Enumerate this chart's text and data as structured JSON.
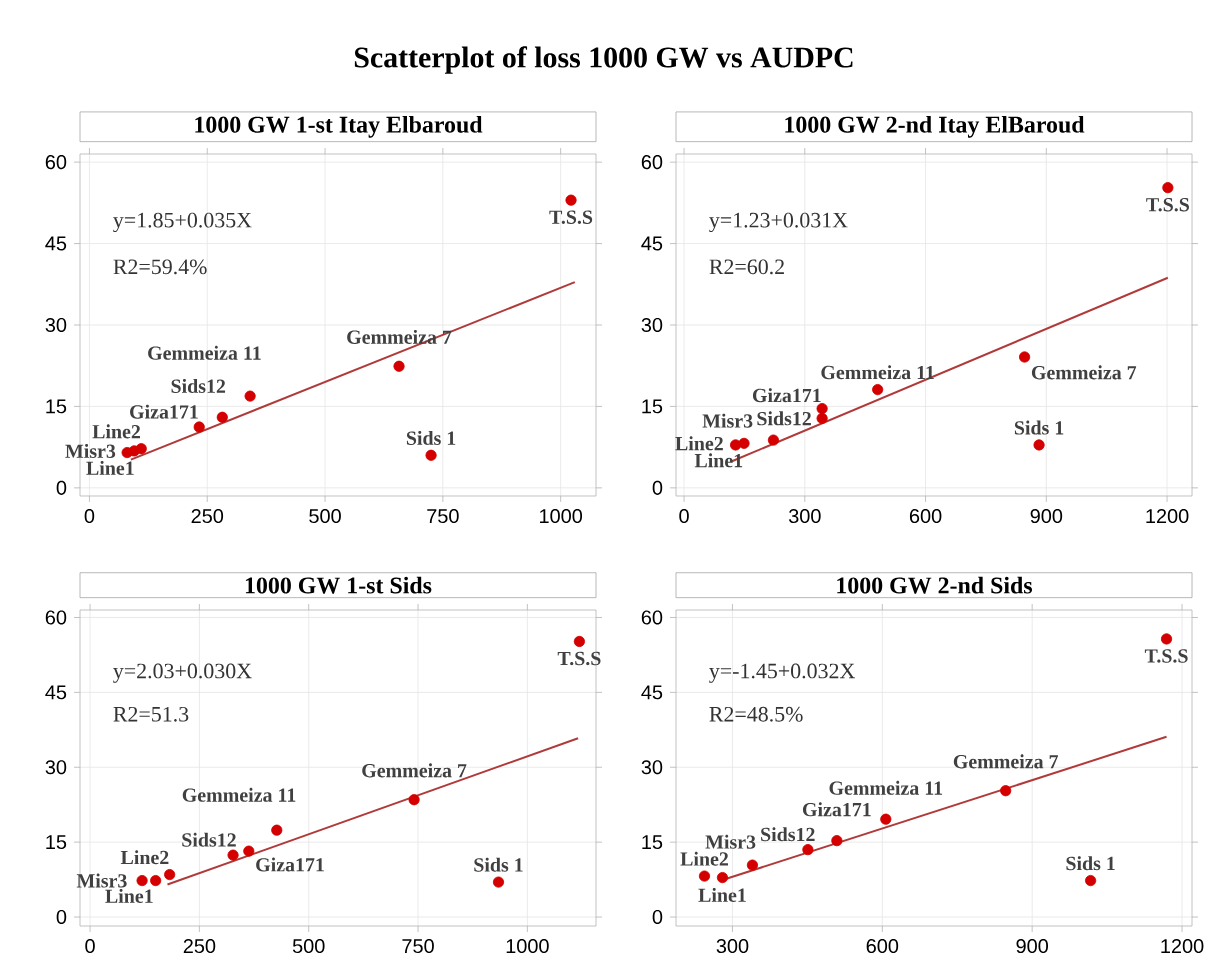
{
  "chart_data": [
    {
      "type": "scatter",
      "title": "1000 GW 1-st  Itay Elbaroud",
      "xlim": [
        -20,
        1075
      ],
      "ylim": [
        -1.5,
        61.5
      ],
      "xticks": [
        0,
        250,
        500,
        750,
        1000
      ],
      "yticks": [
        0,
        15,
        30,
        45,
        60
      ],
      "grid": true,
      "marker": "circle",
      "series": [
        {
          "color": "#d40000",
          "x": [
            80,
            110,
            95,
            233,
            282,
            341,
            657,
            725,
            1022
          ],
          "values": [
            6.5,
            7.2,
            6.8,
            11.2,
            13.0,
            16.9,
            22.4,
            6.0,
            53.0
          ]
        },
        {
          "type": "line",
          "marker": "none",
          "color": "#b03a3a",
          "x": [
            88,
            1030
          ],
          "values": [
            5.2,
            37.9
          ]
        }
      ],
      "annotations": [
        "Scatterplot of loss 1000 GW vs AUDPC",
        "y=1.85+0.035X",
        "R2=59.4%",
        {
          "text": "Line1",
          "x": 80,
          "y": 6.5
        },
        {
          "text": "Line2",
          "x": 110,
          "y": 7.2
        },
        {
          "text": "Misr3",
          "x": 95,
          "y": 6.8
        },
        {
          "text": "Giza171",
          "x": 233,
          "y": 11.2
        },
        {
          "text": "Sids12",
          "x": 282,
          "y": 13.0
        },
        {
          "text": "Gemmeiza 11",
          "x": 341,
          "y": 16.9
        },
        {
          "text": "Gemmeiza 7",
          "x": 657,
          "y": 22.4
        },
        {
          "text": "Sids 1",
          "x": 725,
          "y": 6.0
        },
        {
          "text": "T.S.S",
          "x": 1022,
          "y": 53.0
        }
      ]
    },
    {
      "type": "scatter",
      "title": "1000 GW 2-nd Itay ElBaroud",
      "xlim": [
        -20,
        1262
      ],
      "ylim": [
        -1.5,
        61.5
      ],
      "xticks": [
        0,
        300,
        600,
        900,
        1200
      ],
      "yticks": [
        0,
        15,
        30,
        45,
        60
      ],
      "grid": true,
      "marker": "circle",
      "series": [
        {
          "color": "#d40000",
          "x": [
            128,
            149,
            222,
            343,
            343,
            481,
            846,
            882,
            1202
          ],
          "values": [
            7.9,
            8.2,
            8.8,
            14.6,
            12.8,
            18.1,
            24.1,
            7.9,
            55.3
          ]
        },
        {
          "type": "line",
          "marker": "none",
          "color": "#b03a3a",
          "x": [
            119,
            1202
          ],
          "values": [
            4.9,
            38.7
          ]
        }
      ],
      "annotations": [
        "y=1.23+0.031X",
        "R2=60.2",
        {
          "text": "Line1",
          "x": 128,
          "y": 7.9
        },
        {
          "text": "Line2",
          "x": 149,
          "y": 8.2
        },
        {
          "text": "Misr3",
          "x": 222,
          "y": 8.8
        },
        {
          "text": "Giza171",
          "x": 343,
          "y": 14.6
        },
        {
          "text": "Sids12",
          "x": 343,
          "y": 12.8
        },
        {
          "text": "Gemmeiza 11",
          "x": 481,
          "y": 18.1
        },
        {
          "text": "Gemmeiza 7",
          "x": 846,
          "y": 24.1
        },
        {
          "text": "Sids 1",
          "x": 882,
          "y": 7.9
        },
        {
          "text": "T.S.S",
          "x": 1202,
          "y": 55.3
        }
      ]
    },
    {
      "type": "scatter",
      "title": "1000 GW 1-st Sids",
      "xlim": [
        -23,
        1157
      ],
      "ylim": [
        -1.8,
        61.5
      ],
      "xticks": [
        0,
        250,
        500,
        750,
        1000
      ],
      "yticks": [
        0,
        15,
        30,
        45,
        60
      ],
      "grid": true,
      "marker": "circle",
      "series": [
        {
          "color": "#d40000",
          "x": [
            119,
            182,
            150,
            363,
            327,
            427,
            741,
            934,
            1119
          ],
          "values": [
            7.3,
            8.5,
            7.3,
            13.2,
            12.4,
            17.4,
            23.5,
            7.0,
            55.2
          ]
        },
        {
          "type": "line",
          "marker": "none",
          "color": "#b03a3a",
          "x": [
            177,
            1116
          ],
          "values": [
            6.5,
            35.8
          ]
        }
      ],
      "annotations": [
        "y=2.03+0.030X",
        "R2=51.3",
        {
          "text": "Line1",
          "x": 119,
          "y": 7.3
        },
        {
          "text": "Line2",
          "x": 182,
          "y": 8.5
        },
        {
          "text": "Misr3",
          "x": 150,
          "y": 7.3
        },
        {
          "text": "Giza171",
          "x": 363,
          "y": 13.2
        },
        {
          "text": "Sids12",
          "x": 327,
          "y": 12.4
        },
        {
          "text": "Gemmeiza 11",
          "x": 427,
          "y": 17.4
        },
        {
          "text": "Gemmeiza 7",
          "x": 741,
          "y": 23.5
        },
        {
          "text": "Sids 1",
          "x": 934,
          "y": 7.0
        },
        {
          "text": "T.S.S",
          "x": 1119,
          "y": 55.2
        }
      ]
    },
    {
      "type": "scatter",
      "title": "1000 GW 2-nd Sids",
      "xlim": [
        187,
        1220
      ],
      "ylim": [
        -1.8,
        61.5
      ],
      "xticks": [
        300,
        600,
        900,
        1200
      ],
      "yticks": [
        0,
        15,
        30,
        45,
        60
      ],
      "grid": true,
      "marker": "circle",
      "series": [
        {
          "color": "#d40000",
          "x": [
            280,
            244,
            340,
            509,
            451,
            607,
            847,
            1017,
            1169
          ],
          "values": [
            7.9,
            8.2,
            10.4,
            15.3,
            13.5,
            19.6,
            25.3,
            7.3,
            55.7
          ]
        },
        {
          "type": "line",
          "marker": "none",
          "color": "#b03a3a",
          "x": [
            280,
            1169
          ],
          "values": [
            7.4,
            36.1
          ]
        }
      ],
      "annotations": [
        "y=-1.45+0.032X",
        "R2=48.5%",
        {
          "text": "Line1",
          "x": 280,
          "y": 7.9
        },
        {
          "text": "Line2",
          "x": 244,
          "y": 8.2
        },
        {
          "text": "Misr3",
          "x": 340,
          "y": 10.4
        },
        {
          "text": "Giza171",
          "x": 509,
          "y": 15.3
        },
        {
          "text": "Sids12",
          "x": 451,
          "y": 13.5
        },
        {
          "text": "Gemmeiza 11",
          "x": 607,
          "y": 19.6
        },
        {
          "text": "Gemmeiza 7",
          "x": 847,
          "y": 25.3
        },
        {
          "text": "Sids 1",
          "x": 1017,
          "y": 7.3
        },
        {
          "text": "T.S.S",
          "x": 1169,
          "y": 55.7
        }
      ]
    }
  ]
}
